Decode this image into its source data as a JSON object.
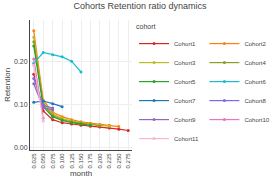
{
  "chart_data": {
    "type": "line",
    "title": "Cohorts Retention ratio dynamics",
    "xlabel": "month",
    "ylabel": "Retention",
    "legend_title": "cohort",
    "legend": "right",
    "grid": true,
    "marker": "circle",
    "line_style": "solid",
    "series": [
      {
        "name": "Cohort1",
        "color": "#d62728",
        "x": [
          0.025,
          0.05,
          0.075,
          0.1,
          0.125,
          0.15,
          0.175,
          0.2,
          0.225,
          0.25,
          0.275
        ],
        "values": [
          0.17,
          0.085,
          0.065,
          0.058,
          0.055,
          0.052,
          0.05,
          0.048,
          0.046,
          0.043,
          0.04
        ]
      },
      {
        "name": "Cohort2",
        "color": "#ff7f0e",
        "x": [
          0.025,
          0.05,
          0.075,
          0.1,
          0.125,
          0.15,
          0.175,
          0.2,
          0.225,
          0.25
        ],
        "values": [
          0.27,
          0.11,
          0.082,
          0.072,
          0.065,
          0.06,
          0.057,
          0.054,
          0.052,
          0.049
        ]
      },
      {
        "name": "Cohort3",
        "color": "#bcbd22",
        "x": [
          0.025,
          0.05,
          0.075,
          0.1,
          0.125,
          0.15,
          0.175,
          0.2,
          0.225
        ],
        "values": [
          0.255,
          0.105,
          0.078,
          0.068,
          0.062,
          0.058,
          0.055,
          0.052,
          0.05
        ]
      },
      {
        "name": "Cohort4",
        "color": "#8c9e2a",
        "x": [
          0.025,
          0.05,
          0.075,
          0.1,
          0.125,
          0.15,
          0.175,
          0.2
        ],
        "values": [
          0.245,
          0.1,
          0.075,
          0.065,
          0.06,
          0.057,
          0.054,
          0.051
        ]
      },
      {
        "name": "Cohort5",
        "color": "#2ca02c",
        "x": [
          0.025,
          0.05,
          0.075,
          0.1,
          0.125,
          0.15,
          0.175
        ],
        "values": [
          0.235,
          0.095,
          0.072,
          0.063,
          0.058,
          0.055,
          0.052
        ]
      },
      {
        "name": "Cohort6",
        "color": "#17becf",
        "x": [
          0.025,
          0.05,
          0.075,
          0.1,
          0.125,
          0.15
        ],
        "values": [
          0.195,
          0.22,
          0.215,
          0.21,
          0.2,
          0.175
        ]
      },
      {
        "name": "Cohort7",
        "color": "#1f77b4",
        "x": [
          0.025,
          0.05,
          0.075,
          0.1
        ],
        "values": [
          0.105,
          0.108,
          0.102,
          0.095
        ]
      },
      {
        "name": "Cohort8",
        "color": "#7b68ee",
        "x": [
          0.025,
          0.05,
          0.075
        ],
        "values": [
          0.16,
          0.098,
          0.092
        ]
      },
      {
        "name": "Cohort9",
        "color": "#9467bd",
        "x": [
          0.025,
          0.05,
          0.075
        ],
        "values": [
          0.148,
          0.092,
          0.088
        ]
      },
      {
        "name": "Cohort10",
        "color": "#e377c2",
        "x": [
          0.025,
          0.05
        ],
        "values": [
          0.205,
          0.068
        ]
      },
      {
        "name": "Cohort11",
        "color": "#f7b6d2",
        "x": [
          0.025,
          0.05
        ],
        "values": [
          0.19,
          0.062
        ]
      }
    ],
    "xlim": [
      0.015,
      0.285
    ],
    "ylim": [
      -0.005,
      0.295
    ],
    "xticks": [
      0.025,
      {
        "value": 0.05,
        "label": "0.050"
      },
      0.075,
      {
        "value": 0.1,
        "label": "0.100"
      },
      0.125,
      {
        "value": 0.15,
        "label": "0.150"
      },
      0.175,
      {
        "value": 0.2,
        "label": "0.200"
      },
      0.225,
      {
        "value": 0.25,
        "label": "0.250"
      },
      0.275
    ],
    "yticks": [
      {
        "value": 0,
        "label": "0.00"
      },
      {
        "value": 0.1,
        "label": "0.10"
      },
      {
        "value": 0.2,
        "label": "0.20"
      }
    ]
  }
}
